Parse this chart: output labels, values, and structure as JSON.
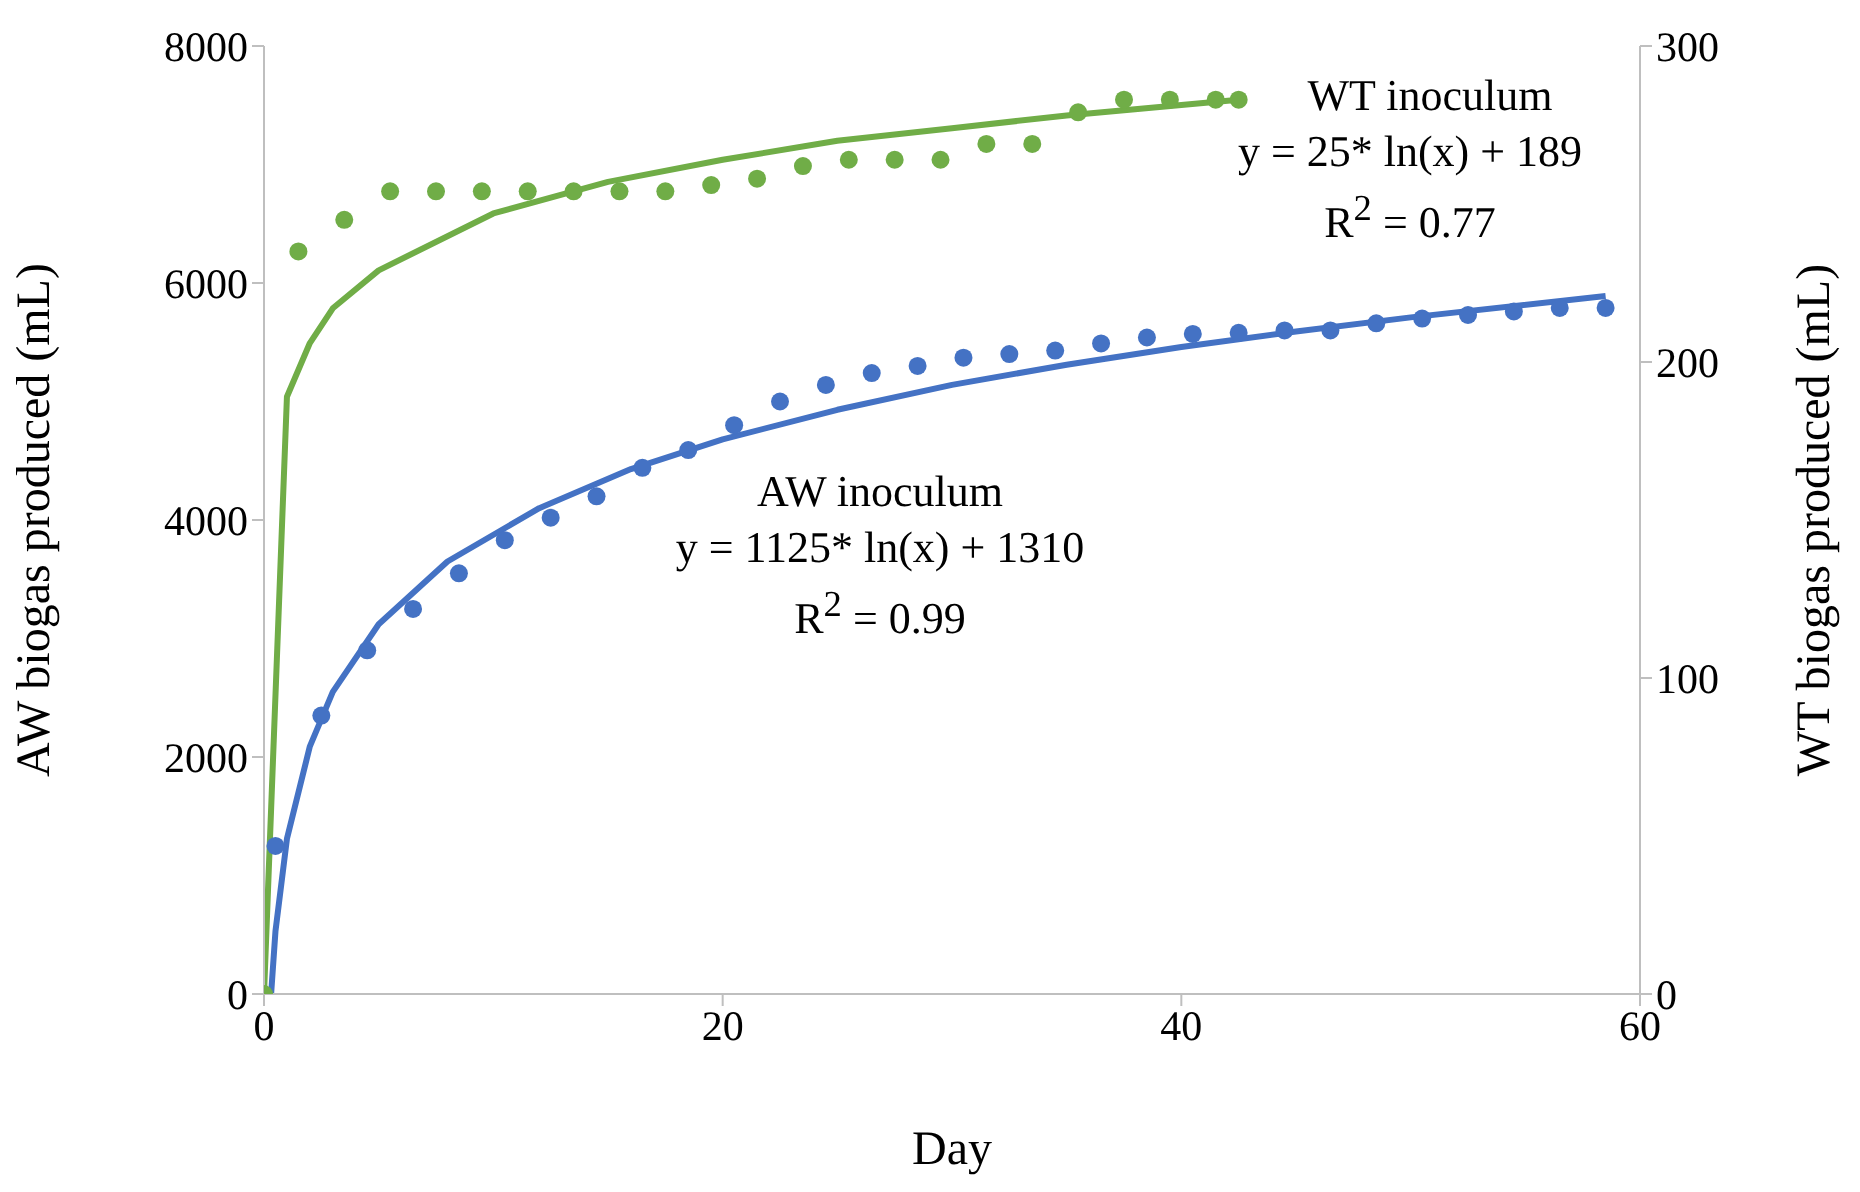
{
  "chart_data": {
    "type": "scatter",
    "xlabel": "Day",
    "ylabel": "AW biogas  produced (mL)",
    "y2label": "WT biogas produced (mL)",
    "xlim": [
      0,
      60
    ],
    "xticks": [
      0,
      20,
      40,
      60
    ],
    "ylim": [
      0,
      8000
    ],
    "yticks": [
      0,
      2000,
      4000,
      6000,
      8000
    ],
    "y2lim": [
      0,
      300
    ],
    "y2ticks": [
      0,
      100,
      200,
      300
    ],
    "grid": false,
    "legend": false,
    "marker": "circle",
    "series": [
      {
        "color": "#4472c4",
        "x": [
          0.5,
          2.5,
          4.5,
          6.5,
          8.5,
          10.5,
          12.5,
          14.5,
          16.5,
          18.5,
          20.5,
          22.5,
          24.5,
          26.5,
          28.5,
          30.5,
          32.5,
          34.5,
          36.5,
          38.5,
          40.5,
          42.5,
          44.5,
          46.5,
          48.5,
          50.5,
          52.5,
          54.5,
          56.5,
          58.5
        ],
        "values": [
          1250,
          2350,
          2900,
          3250,
          3550,
          3830,
          4020,
          4200,
          4440,
          4590,
          4800,
          5000,
          5140,
          5240,
          5300,
          5370,
          5400,
          5430,
          5490,
          5540,
          5570,
          5580,
          5600,
          5600,
          5660,
          5700,
          5730,
          5760,
          5790,
          5790
        ]
      },
      {
        "axis": "y2",
        "color": "#70ad47",
        "x": [
          0,
          1.5,
          3.5,
          5.5,
          7.5,
          9.5,
          11.5,
          13.5,
          15.5,
          17.5,
          19.5,
          21.5,
          23.5,
          25.5,
          27.5,
          29.5,
          31.5,
          33.5,
          35.5,
          37.5,
          39.5,
          41.5,
          42.5
        ],
        "values": [
          0,
          235,
          245,
          254,
          254,
          254,
          254,
          254,
          254,
          254,
          256,
          258,
          262,
          264,
          264,
          264,
          269,
          269,
          279,
          283,
          283,
          283,
          283
        ]
      },
      {
        "type": "line",
        "marker": "none",
        "color": "#4472c4",
        "x": [
          0.31,
          0.5,
          1,
          2,
          3,
          5,
          8,
          12,
          16,
          20,
          25,
          30,
          35,
          40,
          45,
          50,
          58.5
        ],
        "values": [
          0,
          530,
          1310,
          2090,
          2550,
          3120,
          3650,
          4100,
          4430,
          4680,
          4930,
          5140,
          5310,
          5460,
          5590,
          5710,
          5890
        ]
      },
      {
        "type": "line",
        "marker": "none",
        "axis": "y2",
        "color": "#70ad47",
        "x": [
          0.0005,
          1,
          2,
          3,
          5,
          10,
          15,
          20,
          25,
          30,
          35,
          42.5
        ],
        "values": [
          0,
          189,
          206,
          217,
          229,
          247,
          257,
          264,
          270,
          274,
          278,
          283
        ]
      }
    ],
    "annotations": [
      "WT inoculum",
      "y = 25* ln(x) + 189",
      "R$^{2}$ = 0.77",
      "AW inoculum",
      "y = 1125* ln(x) + 1310",
      "R$^{2}$ = 0.99"
    ]
  }
}
